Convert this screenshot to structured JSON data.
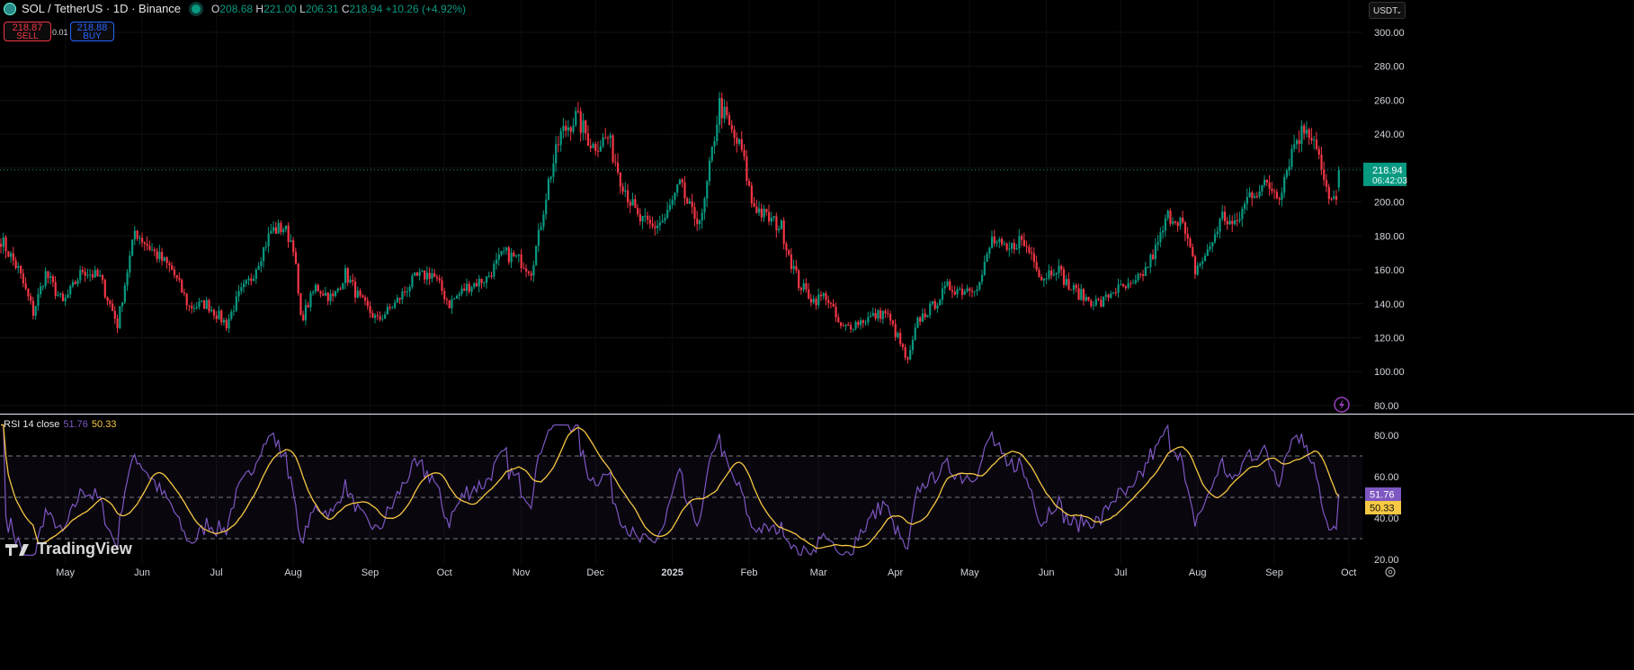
{
  "header": {
    "symbol_title": "SOL / TetherUS · 1D · Binance",
    "ohlc": {
      "o_label": "O",
      "o": "208.68",
      "h_label": "H",
      "h": "221.00",
      "l_label": "L",
      "l": "206.31",
      "c_label": "C",
      "c": "218.94",
      "change": "+10.26 (+4.92%)"
    }
  },
  "trade": {
    "sell_price": "218.87",
    "sell_label": "SELL",
    "spread": "0.01",
    "buy_price": "218.88",
    "buy_label": "BUY"
  },
  "currency_selector": {
    "value": "USDT"
  },
  "price_label": {
    "price": "218.94",
    "countdown": "06:42:03"
  },
  "rsi": {
    "label": "RSI 14 close",
    "value": "51.76",
    "ma_value": "50.33"
  },
  "branding": {
    "logo_text": "TradingView"
  },
  "colors": {
    "up": "#089981",
    "down": "#f23645",
    "rsi": "#7e57c2",
    "rsi_ma": "#f7c843",
    "bg": "#000000"
  },
  "chart_data": {
    "type": "candlestick",
    "title": "SOL / TetherUS · 1D · Binance",
    "price_axis": {
      "ticks": [
        "300.00",
        "280.00",
        "260.00",
        "240.00",
        "220.00",
        "200.00",
        "180.00",
        "160.00",
        "140.00",
        "120.00",
        "100.00",
        "80.00"
      ],
      "ylim": [
        80,
        300
      ]
    },
    "rsi_axis": {
      "ticks": [
        "80.00",
        "60.00",
        "40.00",
        "20.00"
      ],
      "ylim": [
        20,
        80
      ],
      "bands": [
        70,
        50,
        30
      ]
    },
    "time_axis": {
      "labels": [
        [
          "May",
          26
        ],
        [
          "Jun",
          57
        ],
        [
          "Jul",
          87
        ],
        [
          "Aug",
          118
        ],
        [
          "Sep",
          149
        ],
        [
          "Oct",
          179
        ],
        [
          "Nov",
          210
        ],
        [
          "Dec",
          240
        ],
        [
          "2025",
          271
        ],
        [
          "Feb",
          302
        ],
        [
          "Mar",
          330
        ],
        [
          "Apr",
          361
        ],
        [
          "May",
          391
        ],
        [
          "Jun",
          422
        ],
        [
          "Jul",
          452
        ],
        [
          "Aug",
          483
        ],
        [
          "Sep",
          514
        ],
        [
          "Oct",
          544
        ]
      ],
      "days": 541
    },
    "close_keypoints": [
      [
        0,
        178
      ],
      [
        7,
        160
      ],
      [
        13,
        135
      ],
      [
        18,
        158
      ],
      [
        25,
        140
      ],
      [
        33,
        160
      ],
      [
        40,
        155
      ],
      [
        47,
        128
      ],
      [
        54,
        183
      ],
      [
        62,
        170
      ],
      [
        69,
        160
      ],
      [
        76,
        138
      ],
      [
        83,
        140
      ],
      [
        91,
        128
      ],
      [
        96,
        145
      ],
      [
        101,
        155
      ],
      [
        109,
        183
      ],
      [
        114,
        185
      ],
      [
        118,
        175
      ],
      [
        121,
        130
      ],
      [
        127,
        150
      ],
      [
        134,
        143
      ],
      [
        139,
        158
      ],
      [
        145,
        142
      ],
      [
        152,
        130
      ],
      [
        159,
        140
      ],
      [
        167,
        155
      ],
      [
        174,
        158
      ],
      [
        181,
        140
      ],
      [
        188,
        150
      ],
      [
        196,
        155
      ],
      [
        203,
        170
      ],
      [
        210,
        165
      ],
      [
        214,
        160
      ],
      [
        217,
        180
      ],
      [
        221,
        212
      ],
      [
        226,
        240
      ],
      [
        232,
        250
      ],
      [
        239,
        233
      ],
      [
        245,
        238
      ],
      [
        250,
        215
      ],
      [
        257,
        190
      ],
      [
        263,
        185
      ],
      [
        268,
        190
      ],
      [
        274,
        210
      ],
      [
        279,
        192
      ],
      [
        283,
        190
      ],
      [
        286,
        220
      ],
      [
        290,
        258
      ],
      [
        295,
        240
      ],
      [
        299,
        230
      ],
      [
        303,
        200
      ],
      [
        308,
        192
      ],
      [
        315,
        185
      ],
      [
        319,
        165
      ],
      [
        322,
        152
      ],
      [
        328,
        142
      ],
      [
        333,
        145
      ],
      [
        339,
        125
      ],
      [
        344,
        128
      ],
      [
        351,
        132
      ],
      [
        357,
        135
      ],
      [
        362,
        120
      ],
      [
        366,
        105
      ],
      [
        370,
        130
      ],
      [
        377,
        140
      ],
      [
        382,
        150
      ],
      [
        388,
        148
      ],
      [
        395,
        152
      ],
      [
        400,
        178
      ],
      [
        406,
        170
      ],
      [
        411,
        178
      ],
      [
        417,
        168
      ],
      [
        420,
        155
      ],
      [
        426,
        162
      ],
      [
        431,
        150
      ],
      [
        438,
        143
      ],
      [
        444,
        140
      ],
      [
        449,
        148
      ],
      [
        457,
        150
      ],
      [
        462,
        160
      ],
      [
        467,
        175
      ],
      [
        471,
        192
      ],
      [
        476,
        190
      ],
      [
        482,
        160
      ],
      [
        487,
        170
      ],
      [
        493,
        192
      ],
      [
        498,
        185
      ],
      [
        504,
        205
      ],
      [
        511,
        210
      ],
      [
        516,
        205
      ],
      [
        522,
        235
      ],
      [
        527,
        245
      ],
      [
        531,
        235
      ],
      [
        534,
        210
      ],
      [
        537,
        198
      ],
      [
        540,
        208.68
      ]
    ],
    "last_candle": {
      "open": 208.68,
      "high": 221.0,
      "low": 206.31,
      "close": 218.94
    },
    "current_price": 218.94,
    "rsi_last": 51.76,
    "rsi_ma_last": 50.33
  }
}
